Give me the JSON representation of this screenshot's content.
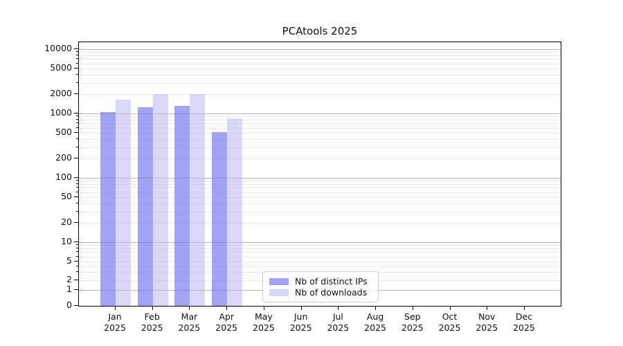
{
  "chart_data": {
    "type": "bar",
    "title": "PCAtools 2025",
    "categories": [
      "Jan",
      "Feb",
      "Mar",
      "Apr",
      "May",
      "Jun",
      "Jul",
      "Aug",
      "Sep",
      "Oct",
      "Nov",
      "Dec"
    ],
    "x_year": "2025",
    "series": [
      {
        "name": "Nb of distinct IPs",
        "color": "rgba(124,124,238,0.70)",
        "values": [
          1050,
          1250,
          1320,
          510,
          0,
          0,
          0,
          0,
          0,
          0,
          0,
          0
        ]
      },
      {
        "name": "Nb of downloads",
        "color": "rgba(184,184,244,0.55)",
        "values": [
          1650,
          2000,
          2000,
          840,
          0,
          0,
          0,
          0,
          0,
          0,
          0,
          0
        ]
      }
    ],
    "y_ticks": [
      0,
      1,
      2,
      5,
      10,
      20,
      50,
      100,
      200,
      500,
      1000,
      2000,
      5000,
      10000
    ],
    "ylim": [
      0,
      10000
    ],
    "y_scale": "log-like (compressed linear segment between 0 and 1)",
    "grid": "on, horizontal major and minor log gridlines",
    "legend_position": "lower center, inside plot",
    "colors": {
      "major_grid": "#b3b3b3",
      "minor_grid": "#e9e9e9",
      "axis": "#000000",
      "legend_border": "#cccccc"
    }
  }
}
